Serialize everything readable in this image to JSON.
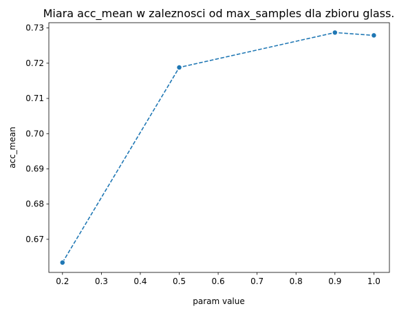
{
  "chart_data": {
    "type": "line",
    "title": "Miara acc_mean w zaleznosci od max_samples dla zbioru glass.",
    "xlabel": "param value",
    "ylabel": "acc_mean",
    "x": [
      0.2,
      0.5,
      0.9,
      1.0
    ],
    "series": [
      {
        "values": [
          0.6634,
          0.7188,
          0.7287,
          0.7279
        ],
        "color": "#1f77b4",
        "line_style": "dashed",
        "marker": "circle"
      }
    ],
    "xlim": [
      0.165,
      1.04
    ],
    "ylim": [
      0.6606,
      0.7315
    ],
    "xticks": [
      0.2,
      0.3,
      0.4,
      0.5,
      0.6,
      0.7,
      0.8,
      0.9,
      1.0
    ],
    "xtick_labels": [
      "0.2",
      "0.3",
      "0.4",
      "0.5",
      "0.6",
      "0.7",
      "0.8",
      "0.9",
      "1.0"
    ],
    "yticks": [
      0.67,
      0.68,
      0.69,
      0.7,
      0.71,
      0.72,
      0.73
    ],
    "ytick_labels": [
      "0.67",
      "0.68",
      "0.69",
      "0.70",
      "0.71",
      "0.72",
      "0.73"
    ],
    "grid": false,
    "legend": "none"
  }
}
